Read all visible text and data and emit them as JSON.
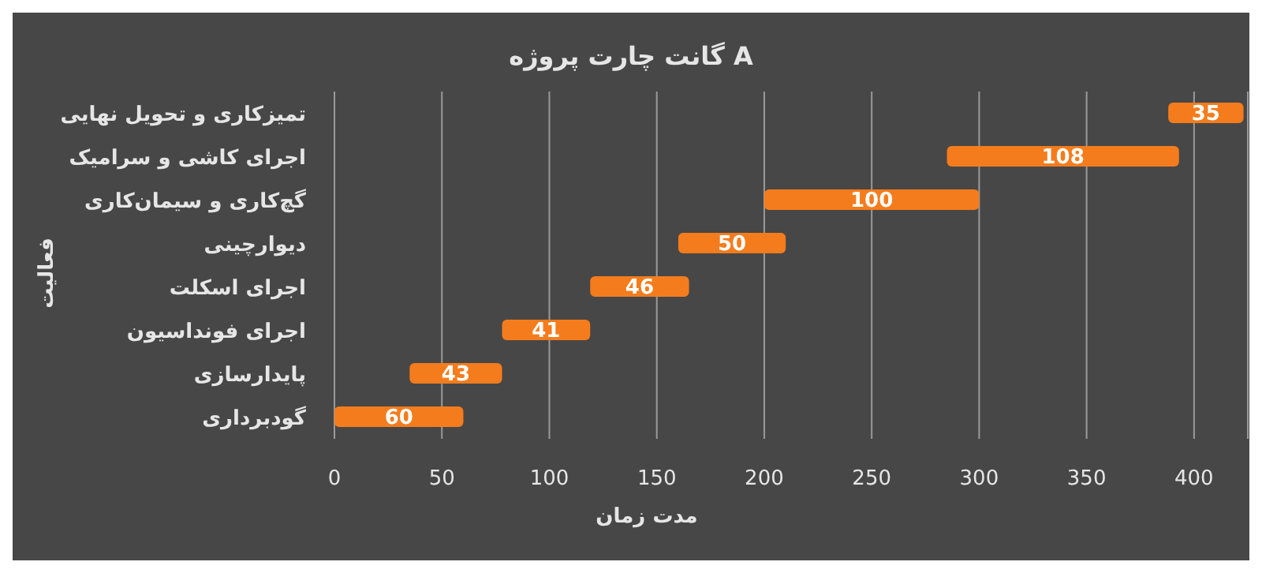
{
  "chart_data": {
    "type": "bar",
    "orientation": "horizontal",
    "title": "گانت چارت پروژه  A",
    "xlabel": "مدت زمان",
    "ylabel": "فعالیت",
    "categories": [
      "تمیزکاری و تحویل نهایی",
      "اجرای کاشی و سرامیک",
      "گچ‌کاری و سیمان‌کاری",
      "دیوارچینی",
      "اجرای اسکلت",
      "اجرای فونداسیون",
      "پایدارسازی",
      "گودبرداری"
    ],
    "base": [
      388,
      285,
      200,
      160,
      119,
      78,
      35,
      0
    ],
    "values": [
      35,
      108,
      100,
      50,
      46,
      41,
      43,
      60
    ],
    "color": "#f57c1c",
    "data_labels": true,
    "grid": "x",
    "xlim": [
      0,
      425
    ],
    "xticks": [
      0,
      50,
      100,
      150,
      200,
      250,
      300,
      350,
      400
    ]
  }
}
